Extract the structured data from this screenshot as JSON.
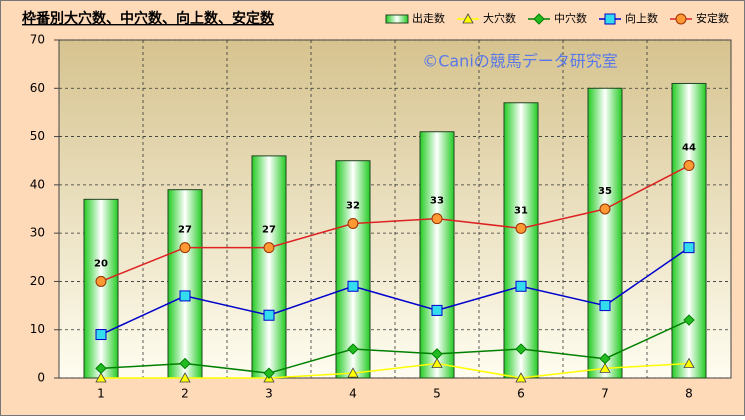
{
  "chart_data": {
    "type": "bar",
    "title": "枠番別大穴数、中穴数、向上数、安定数",
    "watermark": "©Caniの競馬データ研究室",
    "categories": [
      "1",
      "2",
      "3",
      "4",
      "5",
      "6",
      "7",
      "8"
    ],
    "series": [
      {
        "name": "出走数",
        "type": "bar",
        "color": "#33dd33",
        "values": [
          37,
          39,
          46,
          45,
          51,
          57,
          60,
          61
        ]
      },
      {
        "name": "大穴数",
        "type": "line",
        "marker": "triangle",
        "color": "#ffff00",
        "values": [
          0,
          0,
          0,
          1,
          3,
          0,
          2,
          3
        ]
      },
      {
        "name": "中穴数",
        "type": "line",
        "marker": "diamond",
        "color": "#008000",
        "values": [
          2,
          3,
          1,
          6,
          5,
          6,
          4,
          12
        ]
      },
      {
        "name": "向上数",
        "type": "line",
        "marker": "square",
        "color": "#0000cc",
        "values": [
          9,
          17,
          13,
          19,
          14,
          19,
          15,
          27
        ]
      },
      {
        "name": "安定数",
        "type": "line",
        "marker": "circle",
        "color": "#dd2222",
        "values": [
          20,
          27,
          27,
          32,
          33,
          31,
          35,
          44
        ],
        "show_labels": true
      }
    ],
    "ylim": [
      0,
      70
    ],
    "yticks": [
      0,
      10,
      20,
      30,
      40,
      50,
      60,
      70
    ],
    "grid": true,
    "legend": "top-right"
  }
}
